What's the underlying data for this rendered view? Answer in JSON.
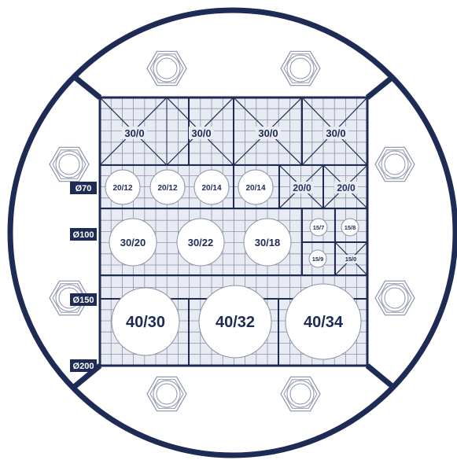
{
  "colors": {
    "navy": "#1d2b55",
    "grid_fill": "#e8ebf1",
    "grid_line": "#8a93aa",
    "white": "#ffffff"
  },
  "icons": {
    "bolt": "hex-bolt-icon"
  },
  "side_labels": [
    "Ø70",
    "Ø100",
    "Ø150",
    "Ø200"
  ],
  "row1_labels": [
    "30/0",
    "30/0",
    "30/0",
    "30/0"
  ],
  "row2_circle_labels": [
    "20/12",
    "20/12",
    "20/14",
    "20/14"
  ],
  "row2_square_labels": [
    "20/0",
    "20/0"
  ],
  "row3_circle_labels": [
    "30/20",
    "30/22",
    "30/18"
  ],
  "row3_small_labels": [
    "15/7",
    "15/8",
    "15/9",
    "15/0"
  ],
  "row4_labels": [
    "40/30",
    "40/32",
    "40/34"
  ]
}
